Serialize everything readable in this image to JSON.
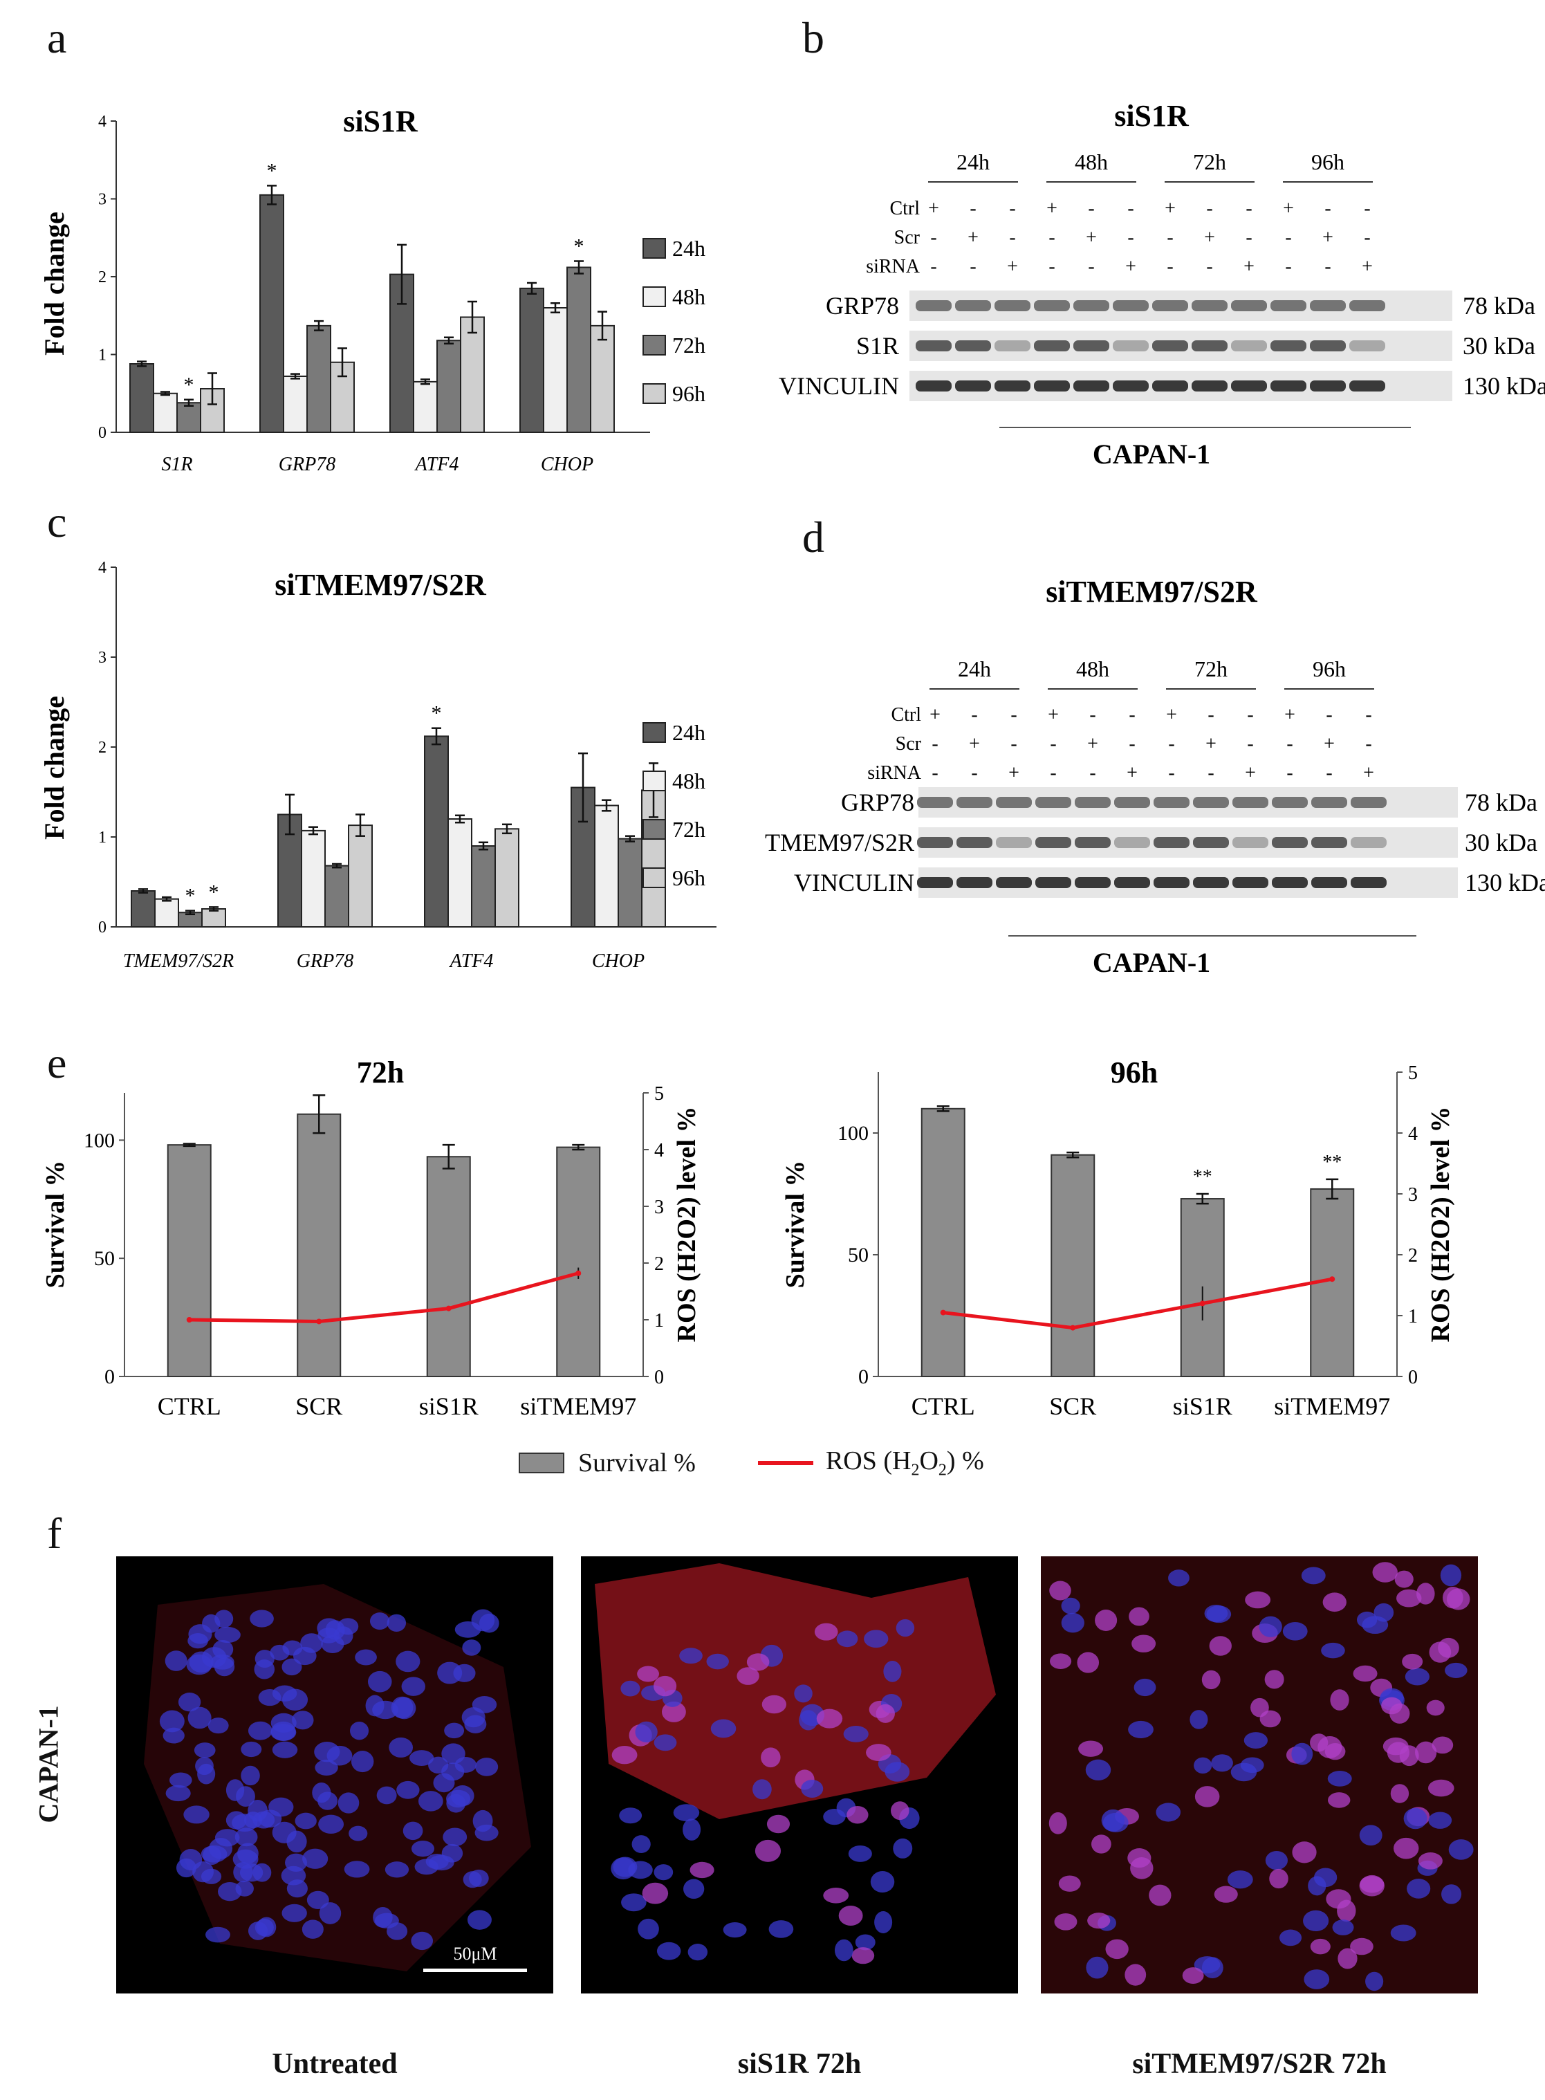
{
  "panel_labels": {
    "a": "a",
    "b": "b",
    "c": "c",
    "d": "d",
    "e": "e",
    "f": "f"
  },
  "colors": {
    "c24": "#5a5a5a",
    "c48": "#f0f0f0",
    "c72": "#7a7a7a",
    "c96": "#cfcfcf",
    "ros": "#e8141e",
    "survival": "#8c8c8c",
    "nuclei": "#3a3ad0",
    "membrane": "#d41e2a"
  },
  "chart_data": [
    {
      "id": "a",
      "type": "bar",
      "title": "siS1R",
      "ylabel": "Fold change",
      "ylim": [
        0,
        4
      ],
      "yticks": [
        "0",
        "1",
        "2",
        "3",
        "4"
      ],
      "categories": [
        "S1R",
        "GRP78",
        "ATF4",
        "CHOP"
      ],
      "series": [
        {
          "name": "24h",
          "values": [
            0.88,
            3.05,
            2.03,
            1.85
          ],
          "errors": [
            0.03,
            0.12,
            0.38,
            0.07
          ]
        },
        {
          "name": "48h",
          "values": [
            0.5,
            0.72,
            0.65,
            1.6
          ],
          "errors": [
            0.02,
            0.03,
            0.03,
            0.06
          ]
        },
        {
          "name": "72h",
          "values": [
            0.38,
            1.37,
            1.18,
            2.12
          ],
          "errors": [
            0.04,
            0.06,
            0.04,
            0.08
          ]
        },
        {
          "name": "96h",
          "values": [
            0.56,
            0.9,
            1.48,
            1.37
          ],
          "errors": [
            0.2,
            0.18,
            0.2,
            0.18
          ]
        }
      ],
      "stars": [
        {
          "label": "*"
        },
        {
          "label": "*"
        },
        {
          "label": "*"
        }
      ]
    },
    {
      "id": "c",
      "type": "bar",
      "title": "siTMEM97/S2R",
      "ylabel": "Fold change",
      "ylim": [
        0,
        4
      ],
      "yticks": [
        "0",
        "1",
        "2",
        "3",
        "4"
      ],
      "categories": [
        "TMEM97/S2R",
        "GRP78",
        "ATF4",
        "CHOP"
      ],
      "series": [
        {
          "name": "24h",
          "values": [
            0.4,
            1.25,
            2.12,
            1.55
          ],
          "errors": [
            0.02,
            0.22,
            0.09,
            0.38
          ]
        },
        {
          "name": "48h",
          "values": [
            0.31,
            1.07,
            1.2,
            1.35
          ],
          "errors": [
            0.02,
            0.04,
            0.04,
            0.06
          ]
        },
        {
          "name": "72h",
          "values": [
            0.16,
            0.68,
            0.9,
            0.98
          ],
          "errors": [
            0.02,
            0.02,
            0.04,
            0.03
          ]
        },
        {
          "name": "96h",
          "values": [
            0.2,
            1.13,
            1.09,
            1.52
          ],
          "errors": [
            0.02,
            0.12,
            0.05,
            0.3
          ]
        }
      ],
      "stars": [
        {
          "label": "*"
        },
        {
          "label": "*"
        },
        {
          "label": "*"
        }
      ]
    },
    {
      "id": "e72",
      "type": "bar+line",
      "title": "72h",
      "ylabel": "Survival %",
      "y2label": "ROS (H2O2) level %",
      "ylim": [
        0,
        120
      ],
      "y2lim": [
        0,
        5
      ],
      "yticks": [
        "0",
        "50",
        "100"
      ],
      "y2ticks": [
        "0",
        "1",
        "2",
        "3",
        "4",
        "5"
      ],
      "categories": [
        "CTRL",
        "SCR",
        "siS1R",
        "siTMEM97"
      ],
      "survival": [
        98,
        111,
        93,
        97
      ],
      "survival_err": [
        0.5,
        8,
        5,
        1
      ],
      "ros": [
        1.0,
        0.97,
        1.2,
        1.82
      ],
      "ros_err": [
        0.03,
        0.03,
        0.03,
        0.1
      ]
    },
    {
      "id": "e96",
      "type": "bar+line",
      "title": "96h",
      "ylabel": "Survival %",
      "y2label": "ROS (H2O2) level %",
      "ylim": [
        0,
        125
      ],
      "y2lim": [
        0,
        5
      ],
      "yticks": [
        "0",
        "50",
        "100"
      ],
      "y2ticks": [
        "0",
        "1",
        "2",
        "3",
        "4",
        "5"
      ],
      "categories": [
        "CTRL",
        "SCR",
        "siS1R",
        "siTMEM97"
      ],
      "survival": [
        110,
        91,
        73,
        77
      ],
      "survival_err": [
        1,
        1,
        2,
        4
      ],
      "ros": [
        1.05,
        0.8,
        1.2,
        1.6
      ],
      "ros_err": [
        0.02,
        0.03,
        0.28,
        0.02
      ],
      "stars": [
        {
          "label": "**"
        },
        {
          "label": "**"
        }
      ]
    }
  ],
  "legend_e": {
    "survival": "Survival %",
    "ros_prefix": "ROS (H",
    "ros_sub1": "2",
    "ros_mid": "O",
    "ros_sub2": "2",
    "ros_suffix": ") %"
  },
  "blot_b": {
    "title": "siS1R",
    "cell_line": "CAPAN-1",
    "timepoints": [
      "24h",
      "48h",
      "72h",
      "96h"
    ],
    "rows": [
      {
        "label": "Ctrl",
        "signs": [
          "+",
          "-",
          "-"
        ]
      },
      {
        "label": "Scr",
        "signs": [
          "-",
          "+",
          "-"
        ]
      },
      {
        "label": "siRNA",
        "signs": [
          "-",
          "-",
          "+"
        ]
      }
    ],
    "bands": [
      {
        "name": "GRP78",
        "kda": "78 kDa"
      },
      {
        "name": "S1R",
        "kda": "30 kDa"
      },
      {
        "name": "VINCULIN",
        "kda": "130 kDa"
      }
    ]
  },
  "blot_d": {
    "title": "siTMEM97/S2R",
    "cell_line": "CAPAN-1",
    "timepoints": [
      "24h",
      "48h",
      "72h",
      "96h"
    ],
    "rows": [
      {
        "label": "Ctrl",
        "signs": [
          "+",
          "-",
          "-"
        ]
      },
      {
        "label": "Scr",
        "signs": [
          "-",
          "+",
          "-"
        ]
      },
      {
        "label": "siRNA",
        "signs": [
          "-",
          "-",
          "+"
        ]
      }
    ],
    "bands": [
      {
        "name": "GRP78",
        "kda": "78 kDa"
      },
      {
        "name": "TMEM97/S2R",
        "kda": "30 kDa"
      },
      {
        "name": "VINCULIN",
        "kda": "130 kDa"
      }
    ]
  },
  "panel_f": {
    "row_label": "CAPAN-1",
    "captions": [
      "Untreated",
      "siS1R 72h",
      "siTMEM97/S2R 72h"
    ],
    "scale_bar": "50μM"
  }
}
